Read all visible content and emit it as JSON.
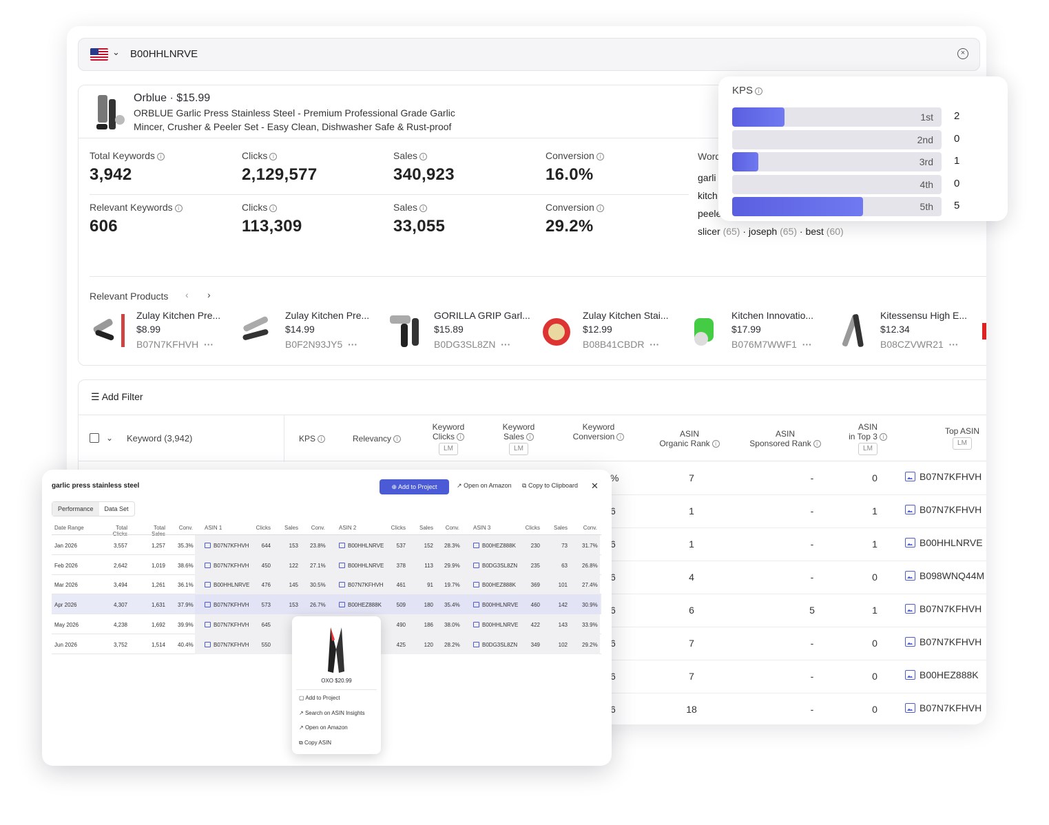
{
  "search": {
    "value": "B00HHLNRVE",
    "flag": "us-flag-icon"
  },
  "product": {
    "brand": "Orblue",
    "price": "$15.99",
    "title": "ORBLUE Garlic Press Stainless Steel - Premium Professional Grade Garlic Mincer, Crusher & Peeler Set - Easy Clean, Dishwasher Safe & Rust-proof"
  },
  "metrics": [
    {
      "label": "Total Keywords",
      "value": "3,942"
    },
    {
      "label": "Clicks",
      "value": "2,129,577"
    },
    {
      "label": "Sales",
      "value": "340,923"
    },
    {
      "label": "Conversion",
      "value": "16.0%"
    },
    {
      "label": "Relevant Keywords",
      "value": "606"
    },
    {
      "label": "Clicks",
      "value": "113,309"
    },
    {
      "label": "Sales",
      "value": "33,055"
    },
    {
      "label": "Conversion",
      "value": "29.2%"
    }
  ],
  "words": {
    "label": "Word",
    "lines": [
      "garli",
      "kitch",
      "peele"
    ],
    "last": [
      {
        "w": "slicer",
        "c": "(65)"
      },
      {
        "w": "joseph",
        "c": "(65)"
      },
      {
        "w": "best",
        "c": "(60)"
      }
    ]
  },
  "relevant": {
    "label": "Relevant Products",
    "items": [
      {
        "name": "Zulay Kitchen Pre...",
        "price": "$8.99",
        "asin": "B07N7KFHVH"
      },
      {
        "name": "Zulay Kitchen Pre...",
        "price": "$14.99",
        "asin": "B0F2N93JY5"
      },
      {
        "name": "GORILLA GRIP Garl...",
        "price": "$15.89",
        "asin": "B0DG3SL8ZN"
      },
      {
        "name": "Zulay Kitchen Stai...",
        "price": "$12.99",
        "asin": "B08B41CBDR"
      },
      {
        "name": "Kitchen Innovatio...",
        "price": "$17.99",
        "asin": "B076M7WWF1"
      },
      {
        "name": "Kitessensu High E...",
        "price": "$12.34",
        "asin": "B08CZVWR21"
      }
    ]
  },
  "table": {
    "add_filter": "Add Filter",
    "keyword_header": "Keyword (3,942)",
    "kps": "KPS",
    "relevancy": "Relevancy",
    "kw_clicks": [
      "Keyword",
      "Clicks"
    ],
    "kw_sales": [
      "Keyword",
      "Sales"
    ],
    "kw_conv": [
      "Keyword",
      "Conversion"
    ],
    "org_rank": [
      "ASIN",
      "Organic Rank"
    ],
    "spon_rank": [
      "ASIN",
      "Sponsored Rank"
    ],
    "top3": [
      "ASIN",
      "in Top 3"
    ],
    "top_asin": "Top ASIN",
    "lm": "LM",
    "rows": [
      {
        "org": "7",
        "spon": "-",
        "top3": "0",
        "asin": "B07N7KFHVH"
      },
      {
        "org": "1",
        "spon": "-",
        "top3": "1",
        "asin": "B07N7KFHVH"
      },
      {
        "org": "1",
        "spon": "-",
        "top3": "1",
        "asin": "B00HHLNRVE"
      },
      {
        "org": "4",
        "spon": "-",
        "top3": "0",
        "asin": "B098WNQ44M"
      },
      {
        "org": "6",
        "spon": "5",
        "top3": "1",
        "asin": "B07N7KFHVH"
      },
      {
        "org": "7",
        "spon": "-",
        "top3": "0",
        "asin": "B07N7KFHVH"
      },
      {
        "org": "7",
        "spon": "-",
        "top3": "0",
        "asin": "B00HEZ888K"
      },
      {
        "org": "18",
        "spon": "-",
        "top3": "0",
        "asin": "B07N7KFHVH"
      }
    ]
  },
  "kps": {
    "title": "KPS",
    "bars": [
      {
        "label": "1st",
        "value": 2
      },
      {
        "label": "2nd",
        "value": 0
      },
      {
        "label": "3rd",
        "value": 1
      },
      {
        "label": "4th",
        "value": 0
      },
      {
        "label": "5th",
        "value": 5
      }
    ],
    "max": 8
  },
  "popup": {
    "title": "garlic press stainless steel",
    "add": "Add to Project",
    "amazon": "Open on Amazon",
    "copy": "Copy to Clipboard",
    "tabs": [
      "Performance",
      "Data Set"
    ],
    "headers": [
      "Date Range",
      "Total Clicks",
      "Total Sales",
      "Conv.",
      "ASIN 1",
      "Clicks",
      "Sales",
      "Conv.",
      "ASIN 2",
      "Clicks",
      "Sales",
      "Conv.",
      "ASIN 3",
      "Clicks",
      "Sales",
      "Conv."
    ],
    "rows": [
      [
        "Jan 2026",
        "3,557",
        "1,257",
        "35.3%",
        "B07N7KFHVH",
        "644",
        "153",
        "23.8%",
        "B00HHLNRVE",
        "537",
        "152",
        "28.3%",
        "B00HEZ888K",
        "230",
        "73",
        "31.7%"
      ],
      [
        "Feb 2026",
        "2,642",
        "1,019",
        "38.6%",
        "B07N7KFHVH",
        "450",
        "122",
        "27.1%",
        "B00HHLNRVE",
        "378",
        "113",
        "29.9%",
        "B0DG3SL8ZN",
        "235",
        "63",
        "26.8%"
      ],
      [
        "Mar 2026",
        "3,494",
        "1,261",
        "36.1%",
        "B00HHLNRVE",
        "476",
        "145",
        "30.5%",
        "B07N7KFHVH",
        "461",
        "91",
        "19.7%",
        "B00HEZ888K",
        "369",
        "101",
        "27.4%"
      ],
      [
        "Apr 2026",
        "4,307",
        "1,631",
        "37.9%",
        "B07N7KFHVH",
        "573",
        "153",
        "26.7%",
        "B00HEZ888K",
        "509",
        "180",
        "35.4%",
        "B00HHLNRVE",
        "460",
        "142",
        "30.9%"
      ],
      [
        "May 2026",
        "4,238",
        "1,692",
        "39.9%",
        "B07N7KFHVH",
        "645",
        "1",
        "",
        "",
        "490",
        "186",
        "38.0%",
        "B00HHLNRVE",
        "422",
        "143",
        "33.9%"
      ],
      [
        "Jun 2026",
        "3,752",
        "1,514",
        "40.4%",
        "B07N7KFHVH",
        "550",
        "1",
        "",
        "",
        "425",
        "120",
        "28.2%",
        "B0DG3SL8ZN",
        "349",
        "102",
        "29.2%"
      ]
    ]
  },
  "ctx": {
    "product": "OXO $20.99",
    "items": [
      "Add to Project",
      "Search on ASIN Insights",
      "Open on Amazon",
      "Copy ASIN"
    ]
  },
  "partial_pct": "%",
  "partial_6": "6"
}
